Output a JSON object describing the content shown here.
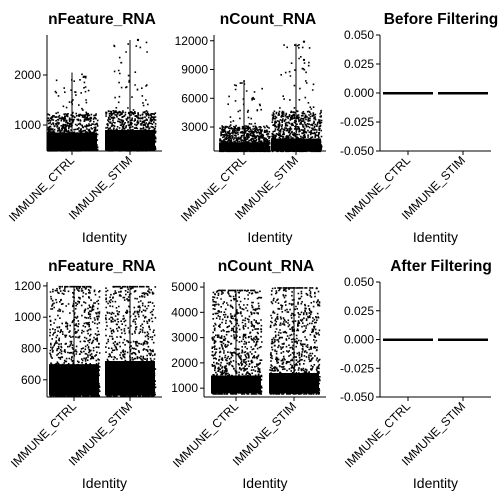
{
  "chart_data": [
    {
      "type": "violin",
      "title": "nFeature_RNA",
      "xlabel": "Identity",
      "ylabel": "",
      "categories": [
        "IMMUNE_CTRL",
        "IMMUNE_STIM"
      ],
      "yticks": [
        1000,
        2000
      ],
      "ylim": [
        480,
        2800
      ],
      "series": [
        {
          "values": {
            "min": 500,
            "median": 850,
            "dense_max": 1250,
            "max": 2050
          }
        },
        {
          "values": {
            "min": 500,
            "median": 900,
            "dense_max": 1300,
            "max": 2700
          }
        }
      ],
      "outliers": [
        {
          "x": "IMMUNE_STIM",
          "y": 2700
        }
      ]
    },
    {
      "type": "violin",
      "title": "nCount_RNA",
      "xlabel": "Identity",
      "ylabel": "",
      "categories": [
        "IMMUNE_CTRL",
        "IMMUNE_STIM"
      ],
      "yticks": [
        3000,
        6000,
        9000,
        12000
      ],
      "ylim": [
        500,
        12600
      ],
      "series": [
        {
          "values": {
            "min": 550,
            "median": 1400,
            "dense_max": 3200,
            "max": 7900
          }
        },
        {
          "values": {
            "min": 550,
            "median": 1800,
            "dense_max": 4800,
            "max": 11700
          }
        }
      ],
      "outliers": [
        {
          "x": "IMMUNE_STIM",
          "y": 10000
        },
        {
          "x": "IMMUNE_STIM",
          "y": 11900
        }
      ]
    },
    {
      "type": "violin",
      "title": "Before Filtering",
      "xlabel": "Identity",
      "ylabel": "",
      "categories": [
        "IMMUNE_CTRL",
        "IMMUNE_STIM"
      ],
      "yticks": [
        "-0.050",
        "-0.025",
        "0.000",
        "0.025",
        "0.050"
      ],
      "ylim": [
        -0.05,
        0.05
      ],
      "series": [
        {
          "values": {
            "value": 0.0
          }
        },
        {
          "values": {
            "value": 0.0
          }
        }
      ]
    },
    {
      "type": "violin",
      "title": "nFeature_RNA",
      "xlabel": "Identity",
      "ylabel": "",
      "categories": [
        "IMMUNE_CTRL",
        "IMMUNE_STIM"
      ],
      "yticks": [
        600,
        800,
        1000,
        1200
      ],
      "ylim": [
        490,
        1225
      ],
      "series": [
        {
          "values": {
            "min": 500,
            "median": 700,
            "max": 1200
          }
        },
        {
          "values": {
            "min": 500,
            "median": 720,
            "max": 1200
          }
        }
      ]
    },
    {
      "type": "violin",
      "title": "nCount_RNA",
      "xlabel": "Identity",
      "ylabel": "",
      "categories": [
        "IMMUNE_CTRL",
        "IMMUNE_STIM"
      ],
      "yticks": [
        1000,
        2000,
        3000,
        4000,
        5000
      ],
      "ylim": [
        650,
        5200
      ],
      "series": [
        {
          "values": {
            "min": 800,
            "median": 1500,
            "max": 4900
          }
        },
        {
          "values": {
            "min": 800,
            "median": 1600,
            "max": 5000
          }
        }
      ]
    },
    {
      "type": "violin",
      "title": "After Filtering",
      "xlabel": "Identity",
      "ylabel": "",
      "categories": [
        "IMMUNE_CTRL",
        "IMMUNE_STIM"
      ],
      "yticks": [
        "-0.050",
        "-0.025",
        "0.000",
        "0.025",
        "0.050"
      ],
      "ylim": [
        -0.05,
        0.05
      ],
      "series": [
        {
          "values": {
            "value": 0.0
          }
        },
        {
          "values": {
            "value": 0.0
          }
        }
      ]
    }
  ],
  "colors": {
    "points": "#000000",
    "ctrl_violin": "#F8766D",
    "stim_violin": "#00BFC4"
  }
}
